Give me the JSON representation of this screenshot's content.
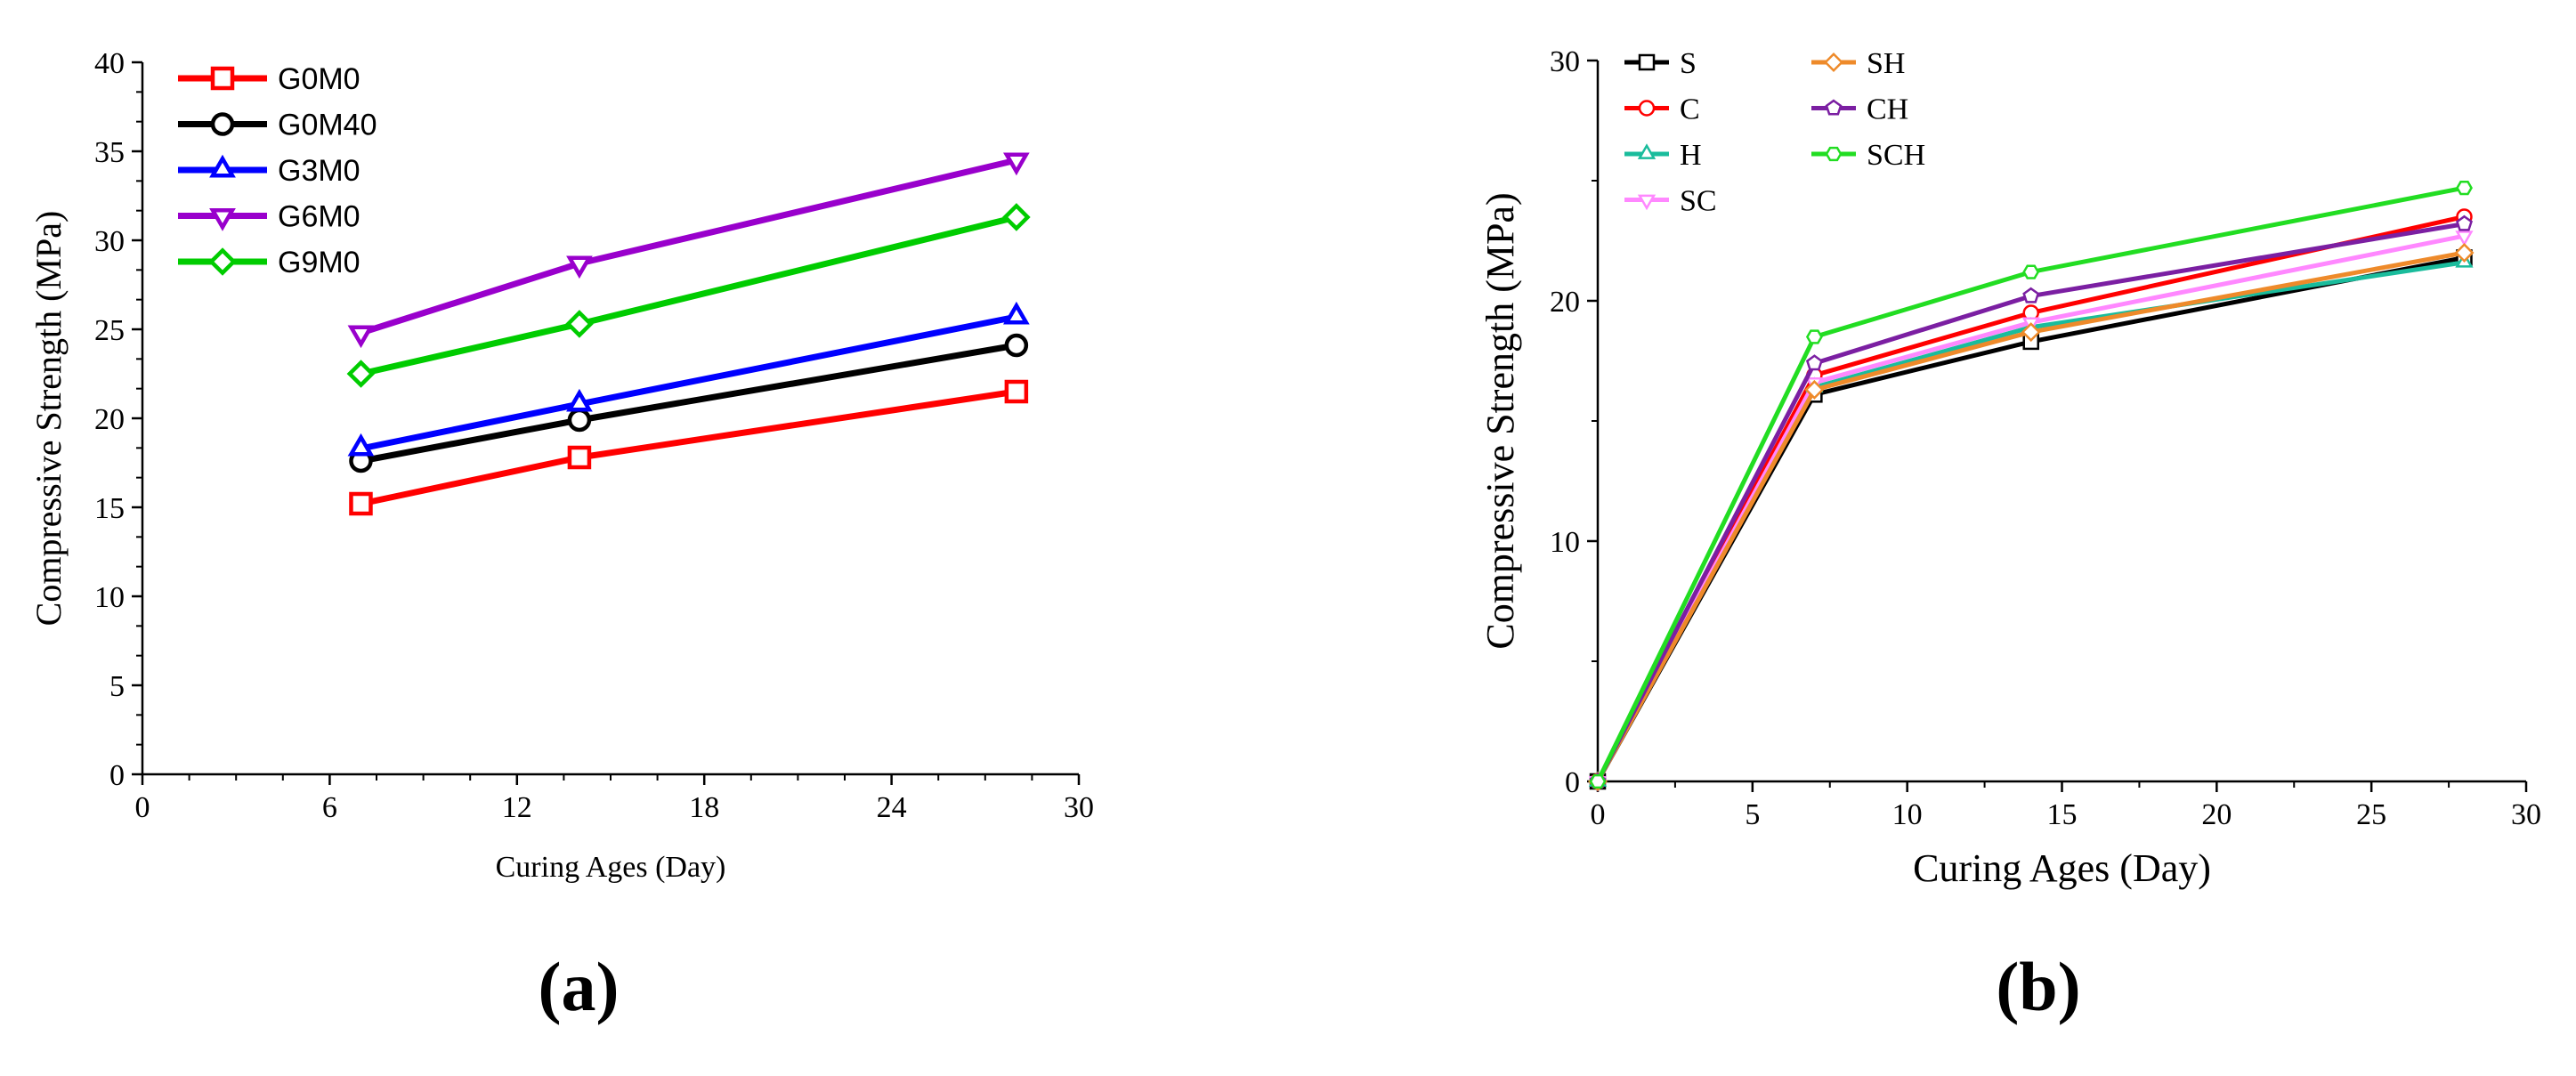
{
  "chart_data": [
    {
      "panel_label": "(a)",
      "type": "line",
      "title": "",
      "xlabel": "Curing Ages (Day)",
      "ylabel": "Compressive Strength (MPa)",
      "xlim": [
        0,
        30
      ],
      "ylim": [
        0,
        40
      ],
      "xticks": [
        0,
        6,
        12,
        18,
        24,
        30
      ],
      "yticks": [
        0,
        5,
        10,
        15,
        20,
        25,
        30,
        35,
        40
      ],
      "grid": false,
      "legend_position": "top-left",
      "x": [
        7,
        14,
        28
      ],
      "series": [
        {
          "name": "G0M0",
          "color": "#ff0000",
          "marker": "square",
          "values": [
            15.2,
            17.8,
            21.5
          ]
        },
        {
          "name": "G0M40",
          "color": "#000000",
          "marker": "circle",
          "values": [
            17.6,
            19.9,
            24.1
          ]
        },
        {
          "name": "G3M0",
          "color": "#0000ff",
          "marker": "triangle-up",
          "values": [
            18.3,
            20.8,
            25.7
          ]
        },
        {
          "name": "G6M0",
          "color": "#9900cc",
          "marker": "triangle-down",
          "values": [
            24.8,
            28.7,
            34.5
          ]
        },
        {
          "name": "G9M0",
          "color": "#00cc00",
          "marker": "diamond",
          "values": [
            22.5,
            25.3,
            31.3
          ]
        }
      ]
    },
    {
      "panel_label": "(b)",
      "type": "line",
      "title": "",
      "xlabel": "Curing Ages (Day)",
      "ylabel": "Compressive Strength (MPa)",
      "xlim": [
        0,
        30
      ],
      "ylim": [
        0,
        30
      ],
      "xticks": [
        0,
        5,
        10,
        15,
        20,
        25,
        30
      ],
      "yticks": [
        0,
        10,
        20,
        30
      ],
      "grid": false,
      "legend_position": "top-left",
      "x": [
        0,
        7,
        14,
        28
      ],
      "series": [
        {
          "name": "S",
          "color": "#000000",
          "marker": "square",
          "values": [
            0,
            16.1,
            18.3,
            21.8
          ]
        },
        {
          "name": "C",
          "color": "#ff0000",
          "marker": "circle",
          "values": [
            0,
            16.9,
            19.5,
            23.5
          ]
        },
        {
          "name": "H",
          "color": "#1abc9c",
          "marker": "triangle-up",
          "values": [
            0,
            16.4,
            18.9,
            21.6
          ]
        },
        {
          "name": "SC",
          "color": "#ff88ff",
          "marker": "triangle-down",
          "values": [
            0,
            16.6,
            19.1,
            22.7
          ]
        },
        {
          "name": "SH",
          "color": "#ee8a2a",
          "marker": "diamond",
          "values": [
            0,
            16.3,
            18.7,
            22.0
          ]
        },
        {
          "name": "CH",
          "color": "#7b1fa2",
          "marker": "pentagon",
          "values": [
            0,
            17.4,
            20.2,
            23.2
          ]
        },
        {
          "name": "SCH",
          "color": "#22dd22",
          "marker": "hexagon",
          "values": [
            0,
            18.5,
            21.2,
            24.7
          ]
        }
      ]
    }
  ]
}
